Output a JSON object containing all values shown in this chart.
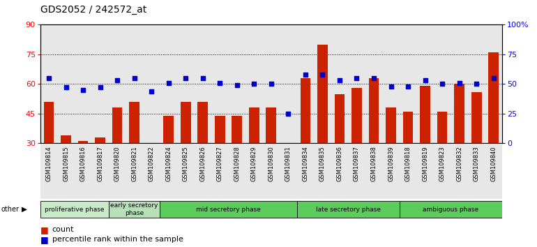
{
  "title": "GDS2052 / 242572_at",
  "samples": [
    "GSM109814",
    "GSM109815",
    "GSM109816",
    "GSM109817",
    "GSM109820",
    "GSM109821",
    "GSM109822",
    "GSM109824",
    "GSM109825",
    "GSM109826",
    "GSM109827",
    "GSM109828",
    "GSM109829",
    "GSM109830",
    "GSM109831",
    "GSM109834",
    "GSM109835",
    "GSM109836",
    "GSM109837",
    "GSM109838",
    "GSM109839",
    "GSM109818",
    "GSM109819",
    "GSM109823",
    "GSM109832",
    "GSM109833",
    "GSM109840"
  ],
  "bar_values": [
    51,
    34,
    31,
    33,
    48,
    51,
    30,
    44,
    51,
    51,
    44,
    44,
    48,
    48,
    30,
    63,
    80,
    55,
    58,
    63,
    48,
    46,
    59,
    46,
    60,
    56,
    76
  ],
  "percentile_values": [
    55,
    47,
    45,
    47,
    53,
    55,
    44,
    51,
    55,
    55,
    51,
    49,
    50,
    50,
    25,
    58,
    58,
    53,
    55,
    55,
    48,
    48,
    53,
    50,
    51,
    50,
    55
  ],
  "ylim_left": [
    30,
    90
  ],
  "ylim_right": [
    0,
    100
  ],
  "yticks_left": [
    30,
    45,
    60,
    75,
    90
  ],
  "yticks_right": [
    0,
    25,
    50,
    75,
    100
  ],
  "bar_color": "#cc2200",
  "dot_color": "#0000cc",
  "title_fontsize": 10,
  "xtick_fontsize": 6,
  "ytick_fontsize": 8,
  "legend_fontsize": 8,
  "legend_items": [
    "count",
    "percentile rank within the sample"
  ],
  "phases": [
    {
      "name": "proliferative phase",
      "start": 0,
      "end": 4,
      "color": "#c8ecc8"
    },
    {
      "name": "early secretory\nphase",
      "start": 4,
      "end": 7,
      "color": "#b8e0b8"
    },
    {
      "name": "mid secretory phase",
      "start": 7,
      "end": 15,
      "color": "#5ccc5c"
    },
    {
      "name": "late secretory phase",
      "start": 15,
      "end": 21,
      "color": "#5ccc5c"
    },
    {
      "name": "ambiguous phase",
      "start": 21,
      "end": 27,
      "color": "#5ccc5c"
    }
  ],
  "col_bg_color": "#d0d0d0",
  "plot_bg_color": "#ffffff"
}
